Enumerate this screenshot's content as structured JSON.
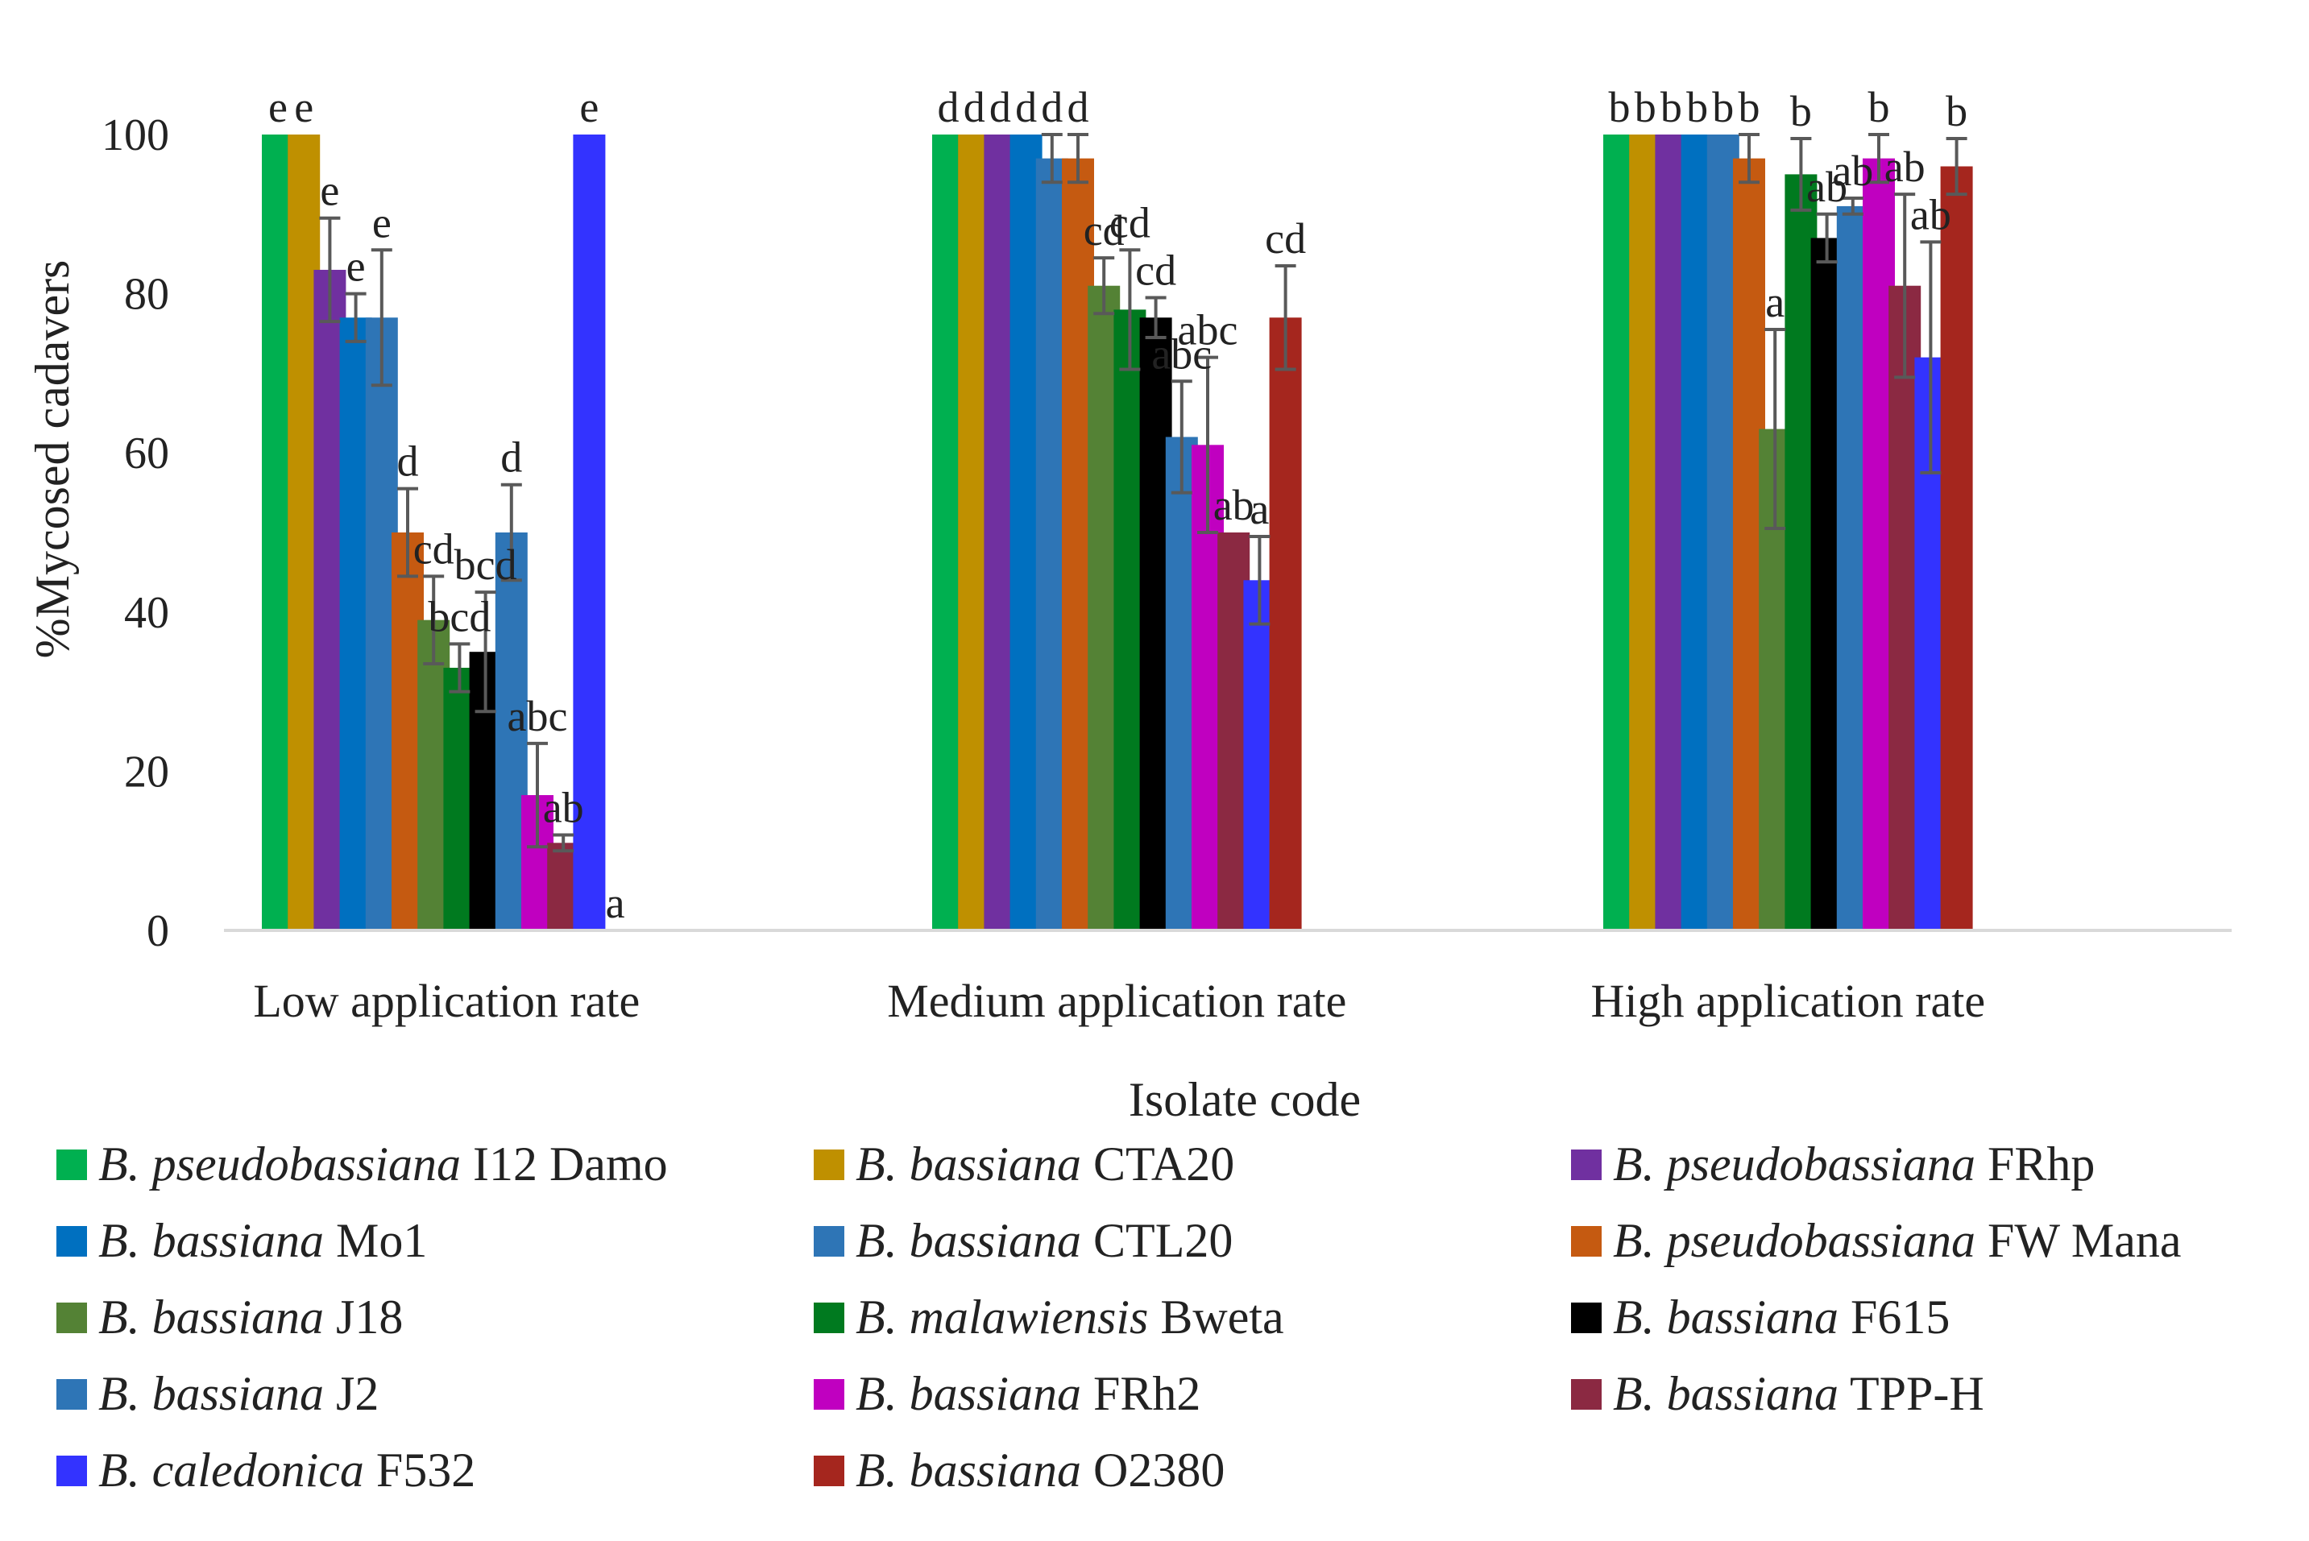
{
  "chart_data": {
    "type": "bar",
    "title": "",
    "xlabel": "Isolate code",
    "ylabel": "%Mycosed cadavers",
    "ylim": [
      0,
      100
    ],
    "yticks": [
      0,
      20,
      40,
      60,
      80,
      100
    ],
    "grid": false,
    "legend_position": "bottom",
    "categories": [
      "Low application rate",
      "Medium application rate",
      "High application rate"
    ],
    "series": [
      {
        "name": "B. pseudobassiana I12 Damo",
        "species": "B. pseudobassiana",
        "code": "I12 Damo",
        "color": "#00b050",
        "values": [
          100,
          100,
          100
        ],
        "errors": [
          0,
          0,
          0
        ],
        "letters": [
          "e",
          "d",
          "b"
        ]
      },
      {
        "name": "B. bassiana CTA20",
        "species": "B. bassiana",
        "code": "CTA20",
        "color": "#bf9000",
        "values": [
          100,
          100,
          100
        ],
        "errors": [
          0,
          0,
          0
        ],
        "letters": [
          "e",
          "d",
          "b"
        ]
      },
      {
        "name": "B. pseudobassiana FRhp",
        "species": "B. pseudobassiana",
        "code": "FRhp",
        "color": "#7030a0",
        "values": [
          83,
          100,
          100
        ],
        "errors": [
          6.5,
          0,
          0
        ],
        "letters": [
          "e",
          "d",
          "b"
        ]
      },
      {
        "name": "B. bassiana Mo1",
        "species": "B. bassiana",
        "code": "Mo1",
        "color": "#0070c0",
        "values": [
          77,
          100,
          100
        ],
        "errors": [
          3,
          0,
          0
        ],
        "letters": [
          "e",
          "d",
          "b"
        ]
      },
      {
        "name": "B. bassiana CTL20",
        "species": "B. bassiana",
        "code": "CTL20",
        "color": "#2e75b6",
        "values": [
          77,
          97,
          100
        ],
        "errors": [
          8.5,
          3,
          0
        ],
        "letters": [
          "e",
          "d",
          "b"
        ]
      },
      {
        "name": "B. pseudobassiana FW Mana",
        "species": "B. pseudobassiana",
        "code": "FW Mana",
        "color": "#c55a11",
        "values": [
          50,
          97,
          97
        ],
        "errors": [
          5.5,
          3,
          3
        ],
        "letters": [
          "d",
          "d",
          "b"
        ]
      },
      {
        "name": "B. bassiana J18",
        "species": "B. bassiana",
        "code": "J18",
        "color": "#548235",
        "values": [
          39,
          81,
          63
        ],
        "errors": [
          5.5,
          3.5,
          12.5
        ],
        "letters": [
          "cd",
          "cd",
          "a"
        ]
      },
      {
        "name": "B. malawiensis Bweta",
        "species": "B. malawiensis",
        "code": "Bweta",
        "color": "#007a1f",
        "values": [
          33,
          78,
          95
        ],
        "errors": [
          3,
          7.5,
          4.5
        ],
        "letters": [
          "bcd",
          "cd",
          "b"
        ]
      },
      {
        "name": "B. bassiana F615",
        "species": "B. bassiana",
        "code": "F615",
        "color": "#000000",
        "values": [
          35,
          77,
          87
        ],
        "errors": [
          7.5,
          2.5,
          3
        ],
        "letters": [
          "bcd",
          "cd",
          "ab"
        ]
      },
      {
        "name": "B. bassiana J2",
        "species": "B. bassiana",
        "code": "J2",
        "color": "#2e75b6",
        "values": [
          50,
          62,
          91
        ],
        "errors": [
          6,
          7,
          1
        ],
        "letters": [
          "d",
          "abc",
          "ab"
        ]
      },
      {
        "name": "B. bassiana FRh2",
        "species": "B. bassiana",
        "code": "FRh2",
        "color": "#c000c0",
        "values": [
          17,
          61,
          97
        ],
        "errors": [
          6.5,
          11,
          3
        ],
        "letters": [
          "abc",
          "abc",
          "b"
        ]
      },
      {
        "name": "B. bassiana TPP-H",
        "species": "B. bassiana",
        "code": "TPP-H",
        "color": "#8b2942",
        "values": [
          11,
          50,
          81
        ],
        "errors": [
          1,
          0,
          11.5
        ],
        "letters": [
          "ab",
          "ab",
          "ab"
        ]
      },
      {
        "name": "B. caledonica F532",
        "species": "B. caledonica",
        "code": "F532",
        "color": "#3333ff",
        "values": [
          100,
          44,
          72
        ],
        "errors": [
          0,
          5.5,
          14.5
        ],
        "letters": [
          "e",
          "a",
          "ab"
        ]
      },
      {
        "name": "B. bassiana O2380",
        "species": "B. bassiana",
        "code": "O2380",
        "color": "#a5261e",
        "values": [
          0,
          77,
          96
        ],
        "errors": [
          0,
          6.5,
          3.5
        ],
        "letters": [
          "a",
          "cd",
          "b"
        ]
      }
    ]
  }
}
